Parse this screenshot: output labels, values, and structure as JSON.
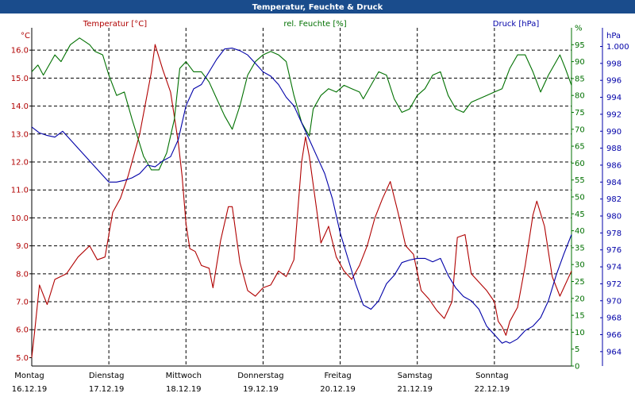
{
  "window": {
    "title": "Temperatur, Feuchte & Druck"
  },
  "chart_data": {
    "type": "line",
    "title": "Temperatur, Feuchte & Druck",
    "grid": true,
    "x_categories": [
      {
        "day": "Montag",
        "date": "16.12.19"
      },
      {
        "day": "Dienstag",
        "date": "17.12.19"
      },
      {
        "day": "Mittwoch",
        "date": "18.12.19"
      },
      {
        "day": "Donnerstag",
        "date": "19.12.19"
      },
      {
        "day": "Freitag",
        "date": "20.12.19"
      },
      {
        "day": "Samstag",
        "date": "21.12.19"
      },
      {
        "day": "Sonntag",
        "date": "22.12.19"
      }
    ],
    "axes": {
      "temperature": {
        "unit": "°C",
        "min": 4.7,
        "max": 16.8,
        "ticks": [
          "5.0",
          "6.0",
          "7.0",
          "8.0",
          "9.0",
          "10.0",
          "11.0",
          "12.0",
          "13.0",
          "14.0",
          "15.0",
          "16.0"
        ]
      },
      "humidity": {
        "unit": "%",
        "min": 0,
        "max": 100,
        "ticks": [
          "0",
          "5",
          "10",
          "15",
          "20",
          "25",
          "30",
          "35",
          "40",
          "45",
          "50",
          "55",
          "60",
          "65",
          "70",
          "75",
          "80",
          "85",
          "90",
          "95",
          "%"
        ]
      },
      "pressure": {
        "unit": "hPa",
        "min": 962.3,
        "max": 1002.2,
        "ticks": [
          "964",
          "966",
          "968",
          "970",
          "972",
          "974",
          "976",
          "978",
          "980",
          "982",
          "984",
          "986",
          "988",
          "990",
          "992",
          "994",
          "996",
          "998",
          "1.000",
          "hPa"
        ]
      }
    },
    "series": [
      {
        "name": "Temperatur [°C]",
        "axis": "temperature",
        "color": "#b00000",
        "points": [
          [
            0,
            5.0
          ],
          [
            0.04,
            6.0
          ],
          [
            0.1,
            7.6
          ],
          [
            0.2,
            6.9
          ],
          [
            0.3,
            7.8
          ],
          [
            0.45,
            8.0
          ],
          [
            0.6,
            8.6
          ],
          [
            0.75,
            9.0
          ],
          [
            0.85,
            8.5
          ],
          [
            0.95,
            8.6
          ],
          [
            1.05,
            10.2
          ],
          [
            1.15,
            10.7
          ],
          [
            1.25,
            11.5
          ],
          [
            1.4,
            13.0
          ],
          [
            1.55,
            15.2
          ],
          [
            1.6,
            16.2
          ],
          [
            1.7,
            15.3
          ],
          [
            1.8,
            14.5
          ],
          [
            1.9,
            12.7
          ],
          [
            1.95,
            11.5
          ],
          [
            2.0,
            9.8
          ],
          [
            2.05,
            8.9
          ],
          [
            2.12,
            8.8
          ],
          [
            2.2,
            8.3
          ],
          [
            2.3,
            8.2
          ],
          [
            2.35,
            7.5
          ],
          [
            2.45,
            9.2
          ],
          [
            2.55,
            10.4
          ],
          [
            2.6,
            10.4
          ],
          [
            2.7,
            8.4
          ],
          [
            2.8,
            7.4
          ],
          [
            2.9,
            7.2
          ],
          [
            3.0,
            7.5
          ],
          [
            3.1,
            7.6
          ],
          [
            3.2,
            8.1
          ],
          [
            3.3,
            7.9
          ],
          [
            3.4,
            8.5
          ],
          [
            3.5,
            12.0
          ],
          [
            3.55,
            12.9
          ],
          [
            3.6,
            12.2
          ],
          [
            3.7,
            10.2
          ],
          [
            3.75,
            9.1
          ],
          [
            3.85,
            9.7
          ],
          [
            3.95,
            8.6
          ],
          [
            4.05,
            8.1
          ],
          [
            4.15,
            7.8
          ],
          [
            4.25,
            8.3
          ],
          [
            4.35,
            9.0
          ],
          [
            4.45,
            10.0
          ],
          [
            4.55,
            10.7
          ],
          [
            4.65,
            11.3
          ],
          [
            4.75,
            10.2
          ],
          [
            4.85,
            9.0
          ],
          [
            4.95,
            8.7
          ],
          [
            5.05,
            7.4
          ],
          [
            5.15,
            7.1
          ],
          [
            5.25,
            6.7
          ],
          [
            5.35,
            6.4
          ],
          [
            5.45,
            7.0
          ],
          [
            5.52,
            9.3
          ],
          [
            5.62,
            9.4
          ],
          [
            5.7,
            8.0
          ],
          [
            5.8,
            7.7
          ],
          [
            5.9,
            7.4
          ],
          [
            6.0,
            7.0
          ],
          [
            6.05,
            6.3
          ],
          [
            6.1,
            6.1
          ],
          [
            6.15,
            5.8
          ],
          [
            6.2,
            6.3
          ],
          [
            6.3,
            6.8
          ],
          [
            6.4,
            8.3
          ],
          [
            6.5,
            10.1
          ],
          [
            6.55,
            10.6
          ],
          [
            6.65,
            9.7
          ],
          [
            6.75,
            7.9
          ],
          [
            6.85,
            7.2
          ],
          [
            6.9,
            7.5
          ],
          [
            7.0,
            8.1
          ]
        ]
      },
      {
        "name": "rel. Feuchte [%]",
        "axis": "humidity",
        "color": "#007000",
        "points": [
          [
            0,
            87
          ],
          [
            0.08,
            89
          ],
          [
            0.15,
            86
          ],
          [
            0.3,
            92
          ],
          [
            0.38,
            90
          ],
          [
            0.5,
            95
          ],
          [
            0.62,
            97
          ],
          [
            0.75,
            95
          ],
          [
            0.82,
            93
          ],
          [
            0.92,
            92
          ],
          [
            1.0,
            86
          ],
          [
            1.1,
            80
          ],
          [
            1.2,
            81
          ],
          [
            1.3,
            73
          ],
          [
            1.45,
            62
          ],
          [
            1.55,
            58
          ],
          [
            1.65,
            58
          ],
          [
            1.75,
            63
          ],
          [
            1.85,
            73
          ],
          [
            1.92,
            88
          ],
          [
            2.0,
            90
          ],
          [
            2.1,
            87
          ],
          [
            2.2,
            87
          ],
          [
            2.3,
            84
          ],
          [
            2.4,
            79
          ],
          [
            2.5,
            74
          ],
          [
            2.6,
            70
          ],
          [
            2.7,
            77
          ],
          [
            2.8,
            86
          ],
          [
            2.9,
            90
          ],
          [
            3.0,
            92
          ],
          [
            3.1,
            93
          ],
          [
            3.2,
            92
          ],
          [
            3.3,
            90
          ],
          [
            3.4,
            80
          ],
          [
            3.5,
            72
          ],
          [
            3.6,
            68
          ],
          [
            3.65,
            76
          ],
          [
            3.75,
            80
          ],
          [
            3.85,
            82
          ],
          [
            3.95,
            81
          ],
          [
            4.05,
            83
          ],
          [
            4.15,
            82
          ],
          [
            4.25,
            81
          ],
          [
            4.3,
            79
          ],
          [
            4.4,
            83
          ],
          [
            4.5,
            87
          ],
          [
            4.6,
            86
          ],
          [
            4.7,
            79
          ],
          [
            4.8,
            75
          ],
          [
            4.9,
            76
          ],
          [
            5.0,
            80
          ],
          [
            5.1,
            82
          ],
          [
            5.2,
            86
          ],
          [
            5.3,
            87
          ],
          [
            5.4,
            80
          ],
          [
            5.5,
            76
          ],
          [
            5.6,
            75
          ],
          [
            5.7,
            78
          ],
          [
            5.8,
            79
          ],
          [
            5.9,
            80
          ],
          [
            6.0,
            81
          ],
          [
            6.1,
            82
          ],
          [
            6.2,
            88
          ],
          [
            6.3,
            92
          ],
          [
            6.4,
            92
          ],
          [
            6.5,
            87
          ],
          [
            6.55,
            84
          ],
          [
            6.6,
            81
          ],
          [
            6.7,
            86
          ],
          [
            6.8,
            90
          ],
          [
            6.85,
            92
          ],
          [
            6.92,
            88
          ],
          [
            7.0,
            83
          ]
        ]
      },
      {
        "name": "Druck [hPa]",
        "axis": "pressure",
        "color": "#0000a8",
        "points": [
          [
            0,
            990.5
          ],
          [
            0.1,
            989.8
          ],
          [
            0.2,
            989.5
          ],
          [
            0.3,
            989.3
          ],
          [
            0.4,
            990.0
          ],
          [
            0.5,
            989.0
          ],
          [
            0.6,
            988.0
          ],
          [
            0.7,
            987.0
          ],
          [
            0.8,
            986.0
          ],
          [
            0.9,
            985.0
          ],
          [
            1.0,
            984.0
          ],
          [
            1.1,
            984.0
          ],
          [
            1.2,
            984.2
          ],
          [
            1.3,
            984.5
          ],
          [
            1.4,
            985.0
          ],
          [
            1.5,
            986.0
          ],
          [
            1.6,
            985.8
          ],
          [
            1.7,
            986.5
          ],
          [
            1.8,
            987.0
          ],
          [
            1.9,
            989.0
          ],
          [
            2.0,
            993.0
          ],
          [
            2.1,
            995.0
          ],
          [
            2.2,
            995.5
          ],
          [
            2.3,
            997.0
          ],
          [
            2.4,
            998.5
          ],
          [
            2.5,
            999.7
          ],
          [
            2.6,
            999.8
          ],
          [
            2.7,
            999.5
          ],
          [
            2.8,
            999.0
          ],
          [
            2.9,
            998.0
          ],
          [
            3.0,
            997.0
          ],
          [
            3.1,
            996.5
          ],
          [
            3.2,
            995.5
          ],
          [
            3.3,
            994.0
          ],
          [
            3.4,
            993.0
          ],
          [
            3.5,
            991.0
          ],
          [
            3.6,
            989.0
          ],
          [
            3.7,
            987.0
          ],
          [
            3.8,
            985.0
          ],
          [
            3.9,
            982.0
          ],
          [
            4.0,
            978.0
          ],
          [
            4.1,
            975.0
          ],
          [
            4.2,
            972.0
          ],
          [
            4.3,
            969.5
          ],
          [
            4.4,
            969.0
          ],
          [
            4.5,
            970.0
          ],
          [
            4.6,
            972.0
          ],
          [
            4.7,
            973.0
          ],
          [
            4.8,
            974.5
          ],
          [
            4.9,
            974.8
          ],
          [
            5.0,
            975.0
          ],
          [
            5.1,
            975.0
          ],
          [
            5.2,
            974.6
          ],
          [
            5.3,
            975.0
          ],
          [
            5.4,
            973.0
          ],
          [
            5.5,
            971.5
          ],
          [
            5.6,
            970.5
          ],
          [
            5.7,
            970.0
          ],
          [
            5.8,
            969.0
          ],
          [
            5.9,
            967.0
          ],
          [
            6.0,
            966.0
          ],
          [
            6.1,
            965.0
          ],
          [
            6.15,
            965.2
          ],
          [
            6.2,
            965.0
          ],
          [
            6.3,
            965.5
          ],
          [
            6.4,
            966.5
          ],
          [
            6.5,
            967.0
          ],
          [
            6.6,
            968.0
          ],
          [
            6.7,
            970.0
          ],
          [
            6.8,
            973.0
          ],
          [
            6.9,
            975.5
          ],
          [
            7.0,
            977.8
          ]
        ]
      }
    ]
  }
}
